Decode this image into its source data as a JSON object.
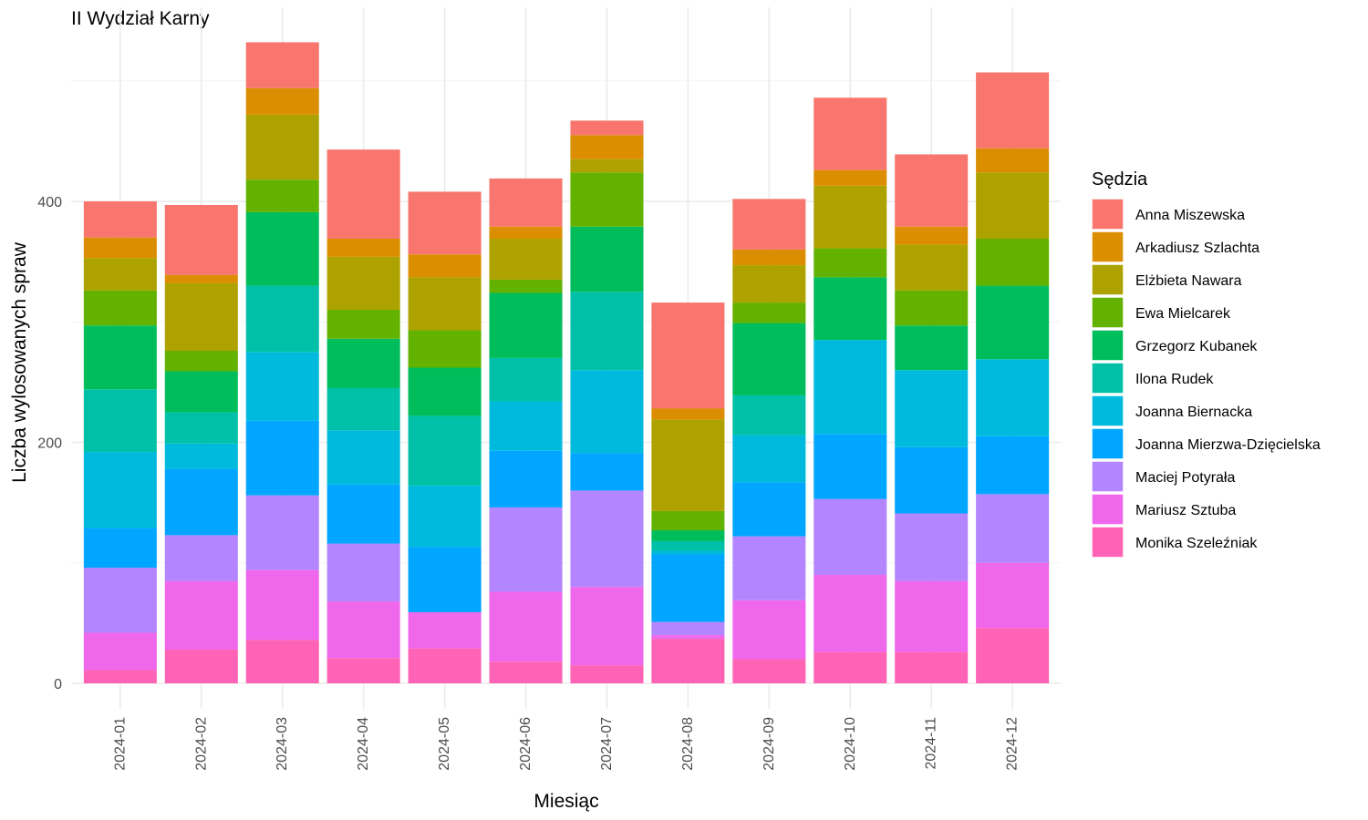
{
  "chart_data": {
    "type": "bar",
    "stacked": true,
    "title": "II Wydział Karny",
    "xlabel": "Miesiąc",
    "ylabel": "Liczba wylosowanych spraw",
    "ylim": [
      0,
      550
    ],
    "yticks": [
      0,
      200,
      400
    ],
    "grid": true,
    "legend_title": "Sędzia",
    "legend_position": "right",
    "categories": [
      "2024-01",
      "2024-02",
      "2024-03",
      "2024-04",
      "2024-05",
      "2024-06",
      "2024-07",
      "2024-08",
      "2024-09",
      "2024-10",
      "2024-11",
      "2024-12"
    ],
    "series": [
      {
        "name": "Anna Miszewska",
        "color": "#F8766D",
        "values": [
          30,
          58,
          38,
          74,
          52,
          40,
          12,
          88,
          42,
          60,
          60,
          63
        ]
      },
      {
        "name": "Arkadiusz Szlachta",
        "color": "#DB8E00",
        "values": [
          17,
          7,
          22,
          15,
          19,
          10,
          20,
          9,
          13,
          13,
          15,
          20
        ]
      },
      {
        "name": "Elżbieta Nawara",
        "color": "#AEA200",
        "values": [
          27,
          56,
          54,
          44,
          44,
          34,
          11,
          76,
          31,
          52,
          38,
          55
        ]
      },
      {
        "name": "Ewa Mielcarek",
        "color": "#64B200",
        "values": [
          29,
          17,
          27,
          24,
          31,
          11,
          45,
          16,
          17,
          24,
          29,
          39
        ]
      },
      {
        "name": "Grzegorz Kubanek",
        "color": "#00BD5C",
        "values": [
          53,
          34,
          61,
          41,
          40,
          54,
          54,
          9,
          60,
          52,
          37,
          61
        ]
      },
      {
        "name": "Ilona Rudek",
        "color": "#00C1A7",
        "values": [
          52,
          26,
          55,
          35,
          58,
          36,
          65,
          8,
          33,
          0,
          0,
          0
        ]
      },
      {
        "name": "Joanna Biernacka",
        "color": "#00BADE",
        "values": [
          63,
          21,
          57,
          45,
          51,
          41,
          69,
          3,
          39,
          78,
          64,
          64
        ]
      },
      {
        "name": "Joanna Mierzwa-Dzięcielska",
        "color": "#00A6FF",
        "values": [
          33,
          55,
          62,
          49,
          54,
          47,
          31,
          56,
          45,
          54,
          55,
          48
        ]
      },
      {
        "name": "Maciej Potyrała",
        "color": "#B385FF",
        "values": [
          54,
          38,
          62,
          48,
          0,
          70,
          80,
          11,
          53,
          63,
          56,
          57
        ]
      },
      {
        "name": "Mariusz Sztuba",
        "color": "#EF67EB",
        "values": [
          31,
          57,
          58,
          47,
          30,
          58,
          65,
          3,
          49,
          64,
          59,
          54
        ]
      },
      {
        "name": "Monika Szeleźniak",
        "color": "#FF63B6",
        "values": [
          11,
          28,
          36,
          21,
          29,
          18,
          15,
          37,
          20,
          26,
          26,
          46
        ]
      }
    ]
  }
}
